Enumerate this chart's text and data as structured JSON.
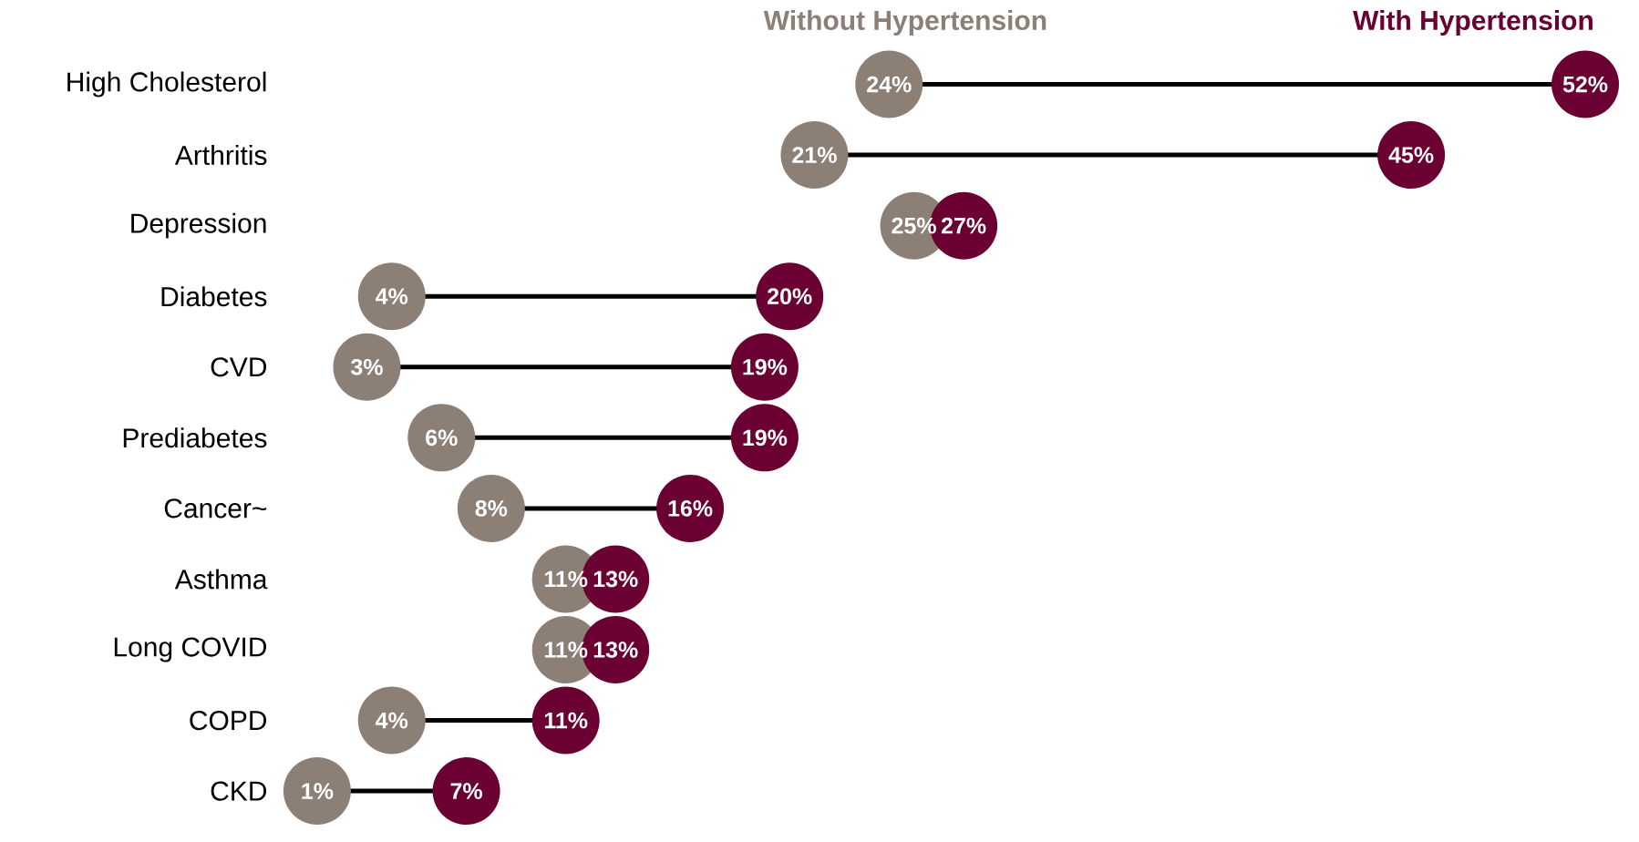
{
  "chart_data": {
    "type": "lollipop",
    "categories": [
      "High Cholesterol",
      "Arthritis",
      "Depression",
      "Diabetes",
      "CVD",
      "Prediabetes",
      "Cancer~",
      "Asthma",
      "Long COVID",
      "COPD",
      "CKD"
    ],
    "series": [
      {
        "name": "Without Hypertension",
        "color": "#8c7f76",
        "values": [
          24,
          21,
          25,
          4,
          3,
          6,
          8,
          11,
          11,
          4,
          1
        ],
        "value_labels": [
          "24%",
          "21%",
          "25%",
          "4%",
          "3%",
          "6%",
          "8%",
          "11%",
          "11%",
          "4%",
          "1%"
        ]
      },
      {
        "name": "With Hypertension",
        "color": "#6b0032",
        "values": [
          52,
          45,
          27,
          20,
          19,
          19,
          16,
          13,
          13,
          11,
          7
        ],
        "value_labels": [
          "52%",
          "45%",
          "27%",
          "20%",
          "19%",
          "19%",
          "16%",
          "13%",
          "13%",
          "11%",
          "7%"
        ]
      }
    ],
    "orientation": "horizontal"
  }
}
